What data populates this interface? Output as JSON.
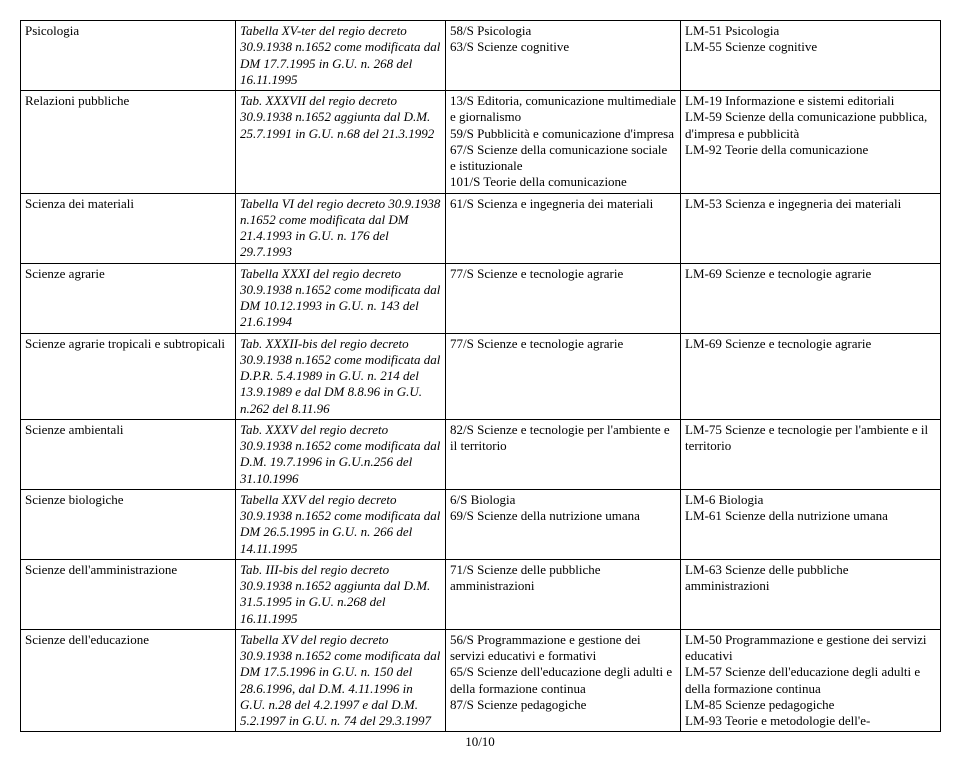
{
  "footer": "10/10",
  "rows": [
    {
      "c1": "Psicologia",
      "c2": "Tabella XV-ter del regio decreto 30.9.1938 n.1652 come modificata dal DM 17.7.1995 in G.U. n. 268 del 16.11.1995",
      "c3": "58/S Psicologia\n63/S Scienze cognitive",
      "c4": "LM-51 Psicologia\nLM-55 Scienze cognitive"
    },
    {
      "c1": "Relazioni pubbliche",
      "c2": "Tab. XXXVII del regio decreto 30.9.1938 n.1652 aggiunta dal D.M. 25.7.1991 in G.U. n.68 del 21.3.1992",
      "c3": "13/S Editoria, comunicazione multimediale e giornalismo\n59/S Pubblicità e comunicazione d'impresa\n67/S Scienze della comunicazione sociale e istituzionale\n101/S Teorie della comunicazione",
      "c4": "LM-19 Informazione e sistemi editoriali\nLM-59 Scienze della comunicazione pubblica, d'impresa e pubblicità\nLM-92 Teorie della comunicazione"
    },
    {
      "c1": "Scienza dei materiali",
      "c2": "Tabella VI del regio decreto 30.9.1938 n.1652 come modificata dal DM 21.4.1993 in G.U. n. 176 del 29.7.1993",
      "c3": "61/S Scienza e ingegneria dei materiali",
      "c4": "LM-53 Scienza e ingegneria dei materiali"
    },
    {
      "c1": "Scienze agrarie",
      "c2": "Tabella XXXI del regio decreto 30.9.1938 n.1652 come modificata dal DM 10.12.1993 in G.U. n. 143 del 21.6.1994",
      "c3": "77/S Scienze e tecnologie agrarie",
      "c4": "LM-69 Scienze e tecnologie agrarie"
    },
    {
      "c1": "Scienze agrarie tropicali e subtropicali",
      "c2": "Tab. XXXII-bis del regio decreto 30.9.1938 n.1652 come modificata dal D.P.R. 5.4.1989 in G.U. n. 214 del 13.9.1989 e dal DM 8.8.96 in G.U. n.262 del 8.11.96",
      "c3": "77/S Scienze e tecnologie agrarie",
      "c4": "LM-69 Scienze e tecnologie agrarie"
    },
    {
      "c1": "Scienze ambientali",
      "c2": "Tab. XXXV del regio decreto 30.9.1938 n.1652 come modificata dal D.M. 19.7.1996 in G.U.n.256 del 31.10.1996",
      "c3": "82/S Scienze e tecnologie per l'ambiente e il territorio",
      "c4": "LM-75 Scienze e tecnologie per l'ambiente e il territorio"
    },
    {
      "c1": "Scienze biologiche",
      "c2": "Tabella XXV del regio decreto 30.9.1938 n.1652 come modificata dal DM 26.5.1995 in G.U. n. 266 del 14.11.1995",
      "c3": "6/S Biologia\n69/S Scienze della nutrizione umana",
      "c4": "LM-6 Biologia\nLM-61 Scienze della nutrizione umana"
    },
    {
      "c1": "Scienze dell'amministrazione",
      "c2": "Tab. III-bis del regio decreto 30.9.1938 n.1652 aggiunta dal D.M. 31.5.1995 in G.U. n.268 del 16.11.1995",
      "c3": "71/S Scienze delle pubbliche amministrazioni",
      "c4": "LM-63 Scienze delle pubbliche amministrazioni"
    },
    {
      "c1": "Scienze dell'educazione",
      "c2": "Tabella XV del regio decreto 30.9.1938 n.1652 come modificata dal DM 17.5.1996 in G.U. n. 150 del 28.6.1996, dal D.M. 4.11.1996 in G.U. n.28 del 4.2.1997 e dal D.M. 5.2.1997 in G.U. n. 74 del 29.3.1997",
      "c3": "56/S Programmazione e gestione dei servizi educativi e formativi\n65/S Scienze dell'educazione degli adulti e della formazione continua\n87/S Scienze pedagogiche",
      "c4": "LM-50 Programmazione e gestione dei servizi educativi\nLM-57 Scienze dell'educazione degli adulti e della formazione continua\nLM-85 Scienze pedagogiche\nLM-93 Teorie e metodologie dell'e-"
    }
  ]
}
